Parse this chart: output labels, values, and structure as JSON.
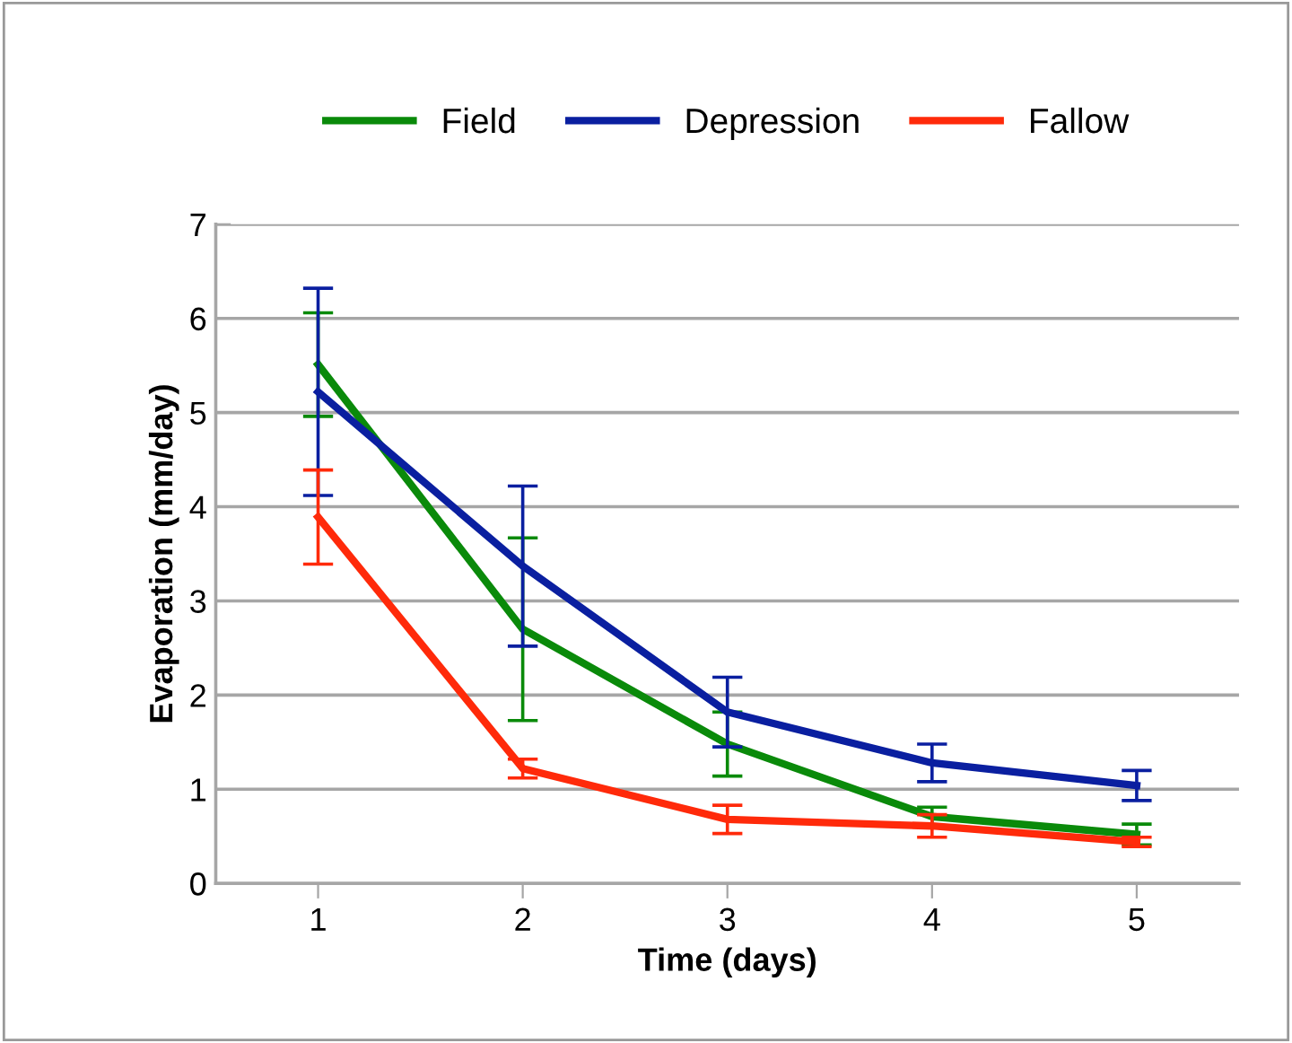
{
  "chart_data": {
    "type": "line",
    "xlabel": "Time (days)",
    "ylabel": "Evaporation (mm/day)",
    "x": [
      1,
      2,
      3,
      4,
      5
    ],
    "xlim": [
      0.5,
      5.5
    ],
    "xticks": [
      1,
      2,
      3,
      4,
      5
    ],
    "ylim": [
      0,
      7
    ],
    "yticks": [
      0,
      1,
      2,
      3,
      4,
      5,
      6,
      7
    ],
    "grid": "y",
    "legend": "top",
    "marker": "none",
    "line_style": "solid",
    "series": [
      {
        "name": "Field",
        "color": "#0a8a0a",
        "values": [
          5.51,
          2.7,
          1.48,
          0.71,
          0.52
        ],
        "errors": [
          0.55,
          0.97,
          0.34,
          0.1,
          0.11
        ]
      },
      {
        "name": "Depression",
        "color": "#0a1fa0",
        "values": [
          5.22,
          3.37,
          1.82,
          1.28,
          1.04
        ],
        "errors": [
          1.1,
          0.85,
          0.37,
          0.2,
          0.16
        ]
      },
      {
        "name": "Fallow",
        "color": "#ff2a0a",
        "values": [
          3.89,
          1.22,
          0.68,
          0.61,
          0.44
        ],
        "errors": [
          0.5,
          0.1,
          0.15,
          0.12,
          0.05
        ]
      }
    ]
  }
}
